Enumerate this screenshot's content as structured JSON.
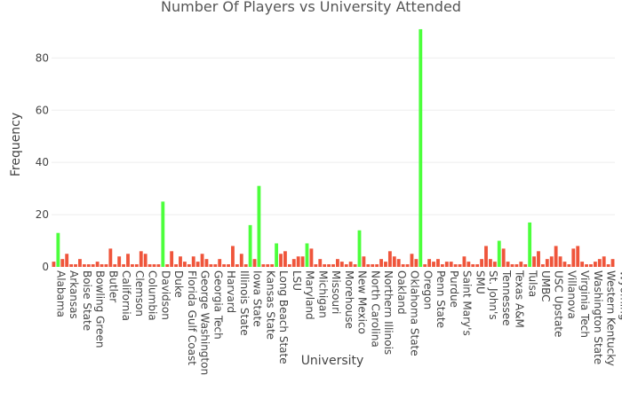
{
  "chart_data": {
    "type": "bar",
    "title": "Number Of Players vs University Attended",
    "xlabel": "University",
    "ylabel": "Frequency",
    "ylim": [
      0,
      92
    ],
    "yticks": [
      0,
      20,
      40,
      60,
      80
    ],
    "grid": true,
    "legend": "none",
    "colors": {
      "low": "#ef553b",
      "high": "#4cff3c"
    },
    "high_threshold": 9,
    "values": [
      2,
      13,
      3,
      5,
      1,
      1,
      3,
      1,
      1,
      1,
      2,
      1,
      1,
      7,
      1,
      4,
      1,
      5,
      1,
      1,
      6,
      5,
      1,
      1,
      1,
      25,
      1,
      6,
      1,
      4,
      2,
      1,
      4,
      2,
      5,
      3,
      1,
      1,
      3,
      1,
      1,
      8,
      1,
      5,
      1,
      16,
      3,
      31,
      1,
      1,
      1,
      9,
      5,
      6,
      1,
      3,
      4,
      4,
      9,
      7,
      1,
      3,
      1,
      1,
      1,
      3,
      2,
      1,
      2,
      1,
      14,
      4,
      1,
      1,
      1,
      3,
      2,
      6,
      4,
      3,
      1,
      1,
      5,
      3,
      91,
      1,
      3,
      2,
      3,
      1,
      2,
      2,
      1,
      1,
      4,
      2,
      1,
      1,
      3,
      8,
      3,
      2,
      10,
      7,
      2,
      1,
      1,
      2,
      1,
      17,
      4,
      6,
      1,
      3,
      4,
      8,
      4,
      2,
      1,
      7,
      8,
      2,
      1,
      1,
      2,
      3,
      4,
      1,
      3
    ],
    "tick_labels": [
      "Alabama",
      "Arkansas",
      "Boise State",
      "Bowling Green",
      "Butler",
      "California",
      "Clemson",
      "Columbia",
      "Davidson",
      "Duke",
      "Florida Gulf Coast",
      "George Washington",
      "Georgia Tech",
      "Harvard",
      "Illinois State",
      "Iowa State",
      "Kansas State",
      "Long Beach State",
      "LSU",
      "Maryland",
      "Michigan",
      "Missouri",
      "Morehouse",
      "New Mexico",
      "North Carolina",
      "Northern Illinois",
      "Oakland",
      "Oklahoma State",
      "Oregon",
      "Penn State",
      "Purdue",
      "Saint Mary's",
      "SMU",
      "St. John's",
      "Tennessee",
      "Texas A&M",
      "Tulsa",
      "UMBC",
      "USC Upstate",
      "Villanova",
      "Virginia Tech",
      "Washington State",
      "Western Kentucky",
      "Wyoming"
    ]
  }
}
